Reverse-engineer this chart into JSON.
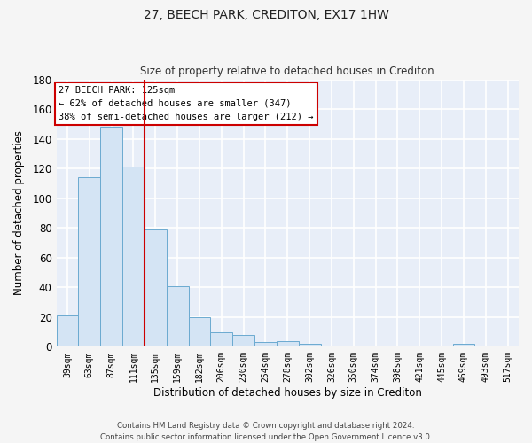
{
  "title": "27, BEECH PARK, CREDITON, EX17 1HW",
  "subtitle": "Size of property relative to detached houses in Crediton",
  "xlabel": "Distribution of detached houses by size in Crediton",
  "ylabel": "Number of detached properties",
  "bar_labels": [
    "39sqm",
    "63sqm",
    "87sqm",
    "111sqm",
    "135sqm",
    "159sqm",
    "182sqm",
    "206sqm",
    "230sqm",
    "254sqm",
    "278sqm",
    "302sqm",
    "326sqm",
    "350sqm",
    "374sqm",
    "398sqm",
    "421sqm",
    "445sqm",
    "469sqm",
    "493sqm",
    "517sqm"
  ],
  "bar_values": [
    21,
    114,
    148,
    121,
    79,
    41,
    20,
    10,
    8,
    3,
    4,
    2,
    0,
    0,
    0,
    0,
    0,
    0,
    2,
    0,
    0
  ],
  "bar_color": "#d4e4f4",
  "bar_edge_color": "#6baad0",
  "vline_x": 3.5,
  "vline_color": "#cc0000",
  "ylim": [
    0,
    180
  ],
  "yticks": [
    0,
    20,
    40,
    60,
    80,
    100,
    120,
    140,
    160,
    180
  ],
  "annotation_title": "27 BEECH PARK: 125sqm",
  "annotation_line1": "← 62% of detached houses are smaller (347)",
  "annotation_line2": "38% of semi-detached houses are larger (212) →",
  "annotation_box_color": "#ffffff",
  "annotation_box_edge": "#cc0000",
  "bg_color": "#e8eef8",
  "grid_color": "#ffffff",
  "fig_bg_color": "#f5f5f5",
  "footer1": "Contains HM Land Registry data © Crown copyright and database right 2024.",
  "footer2": "Contains public sector information licensed under the Open Government Licence v3.0."
}
